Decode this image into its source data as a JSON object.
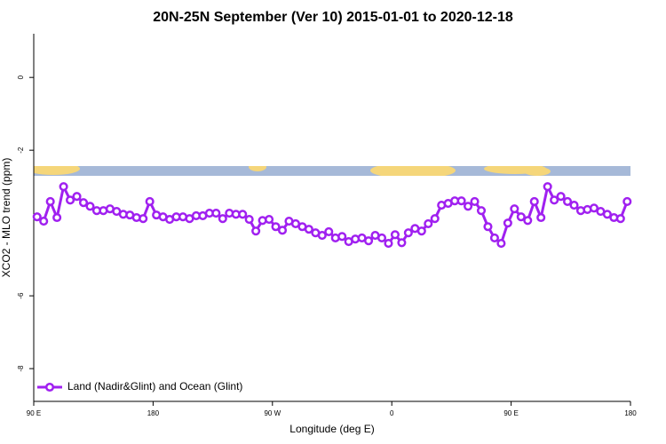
{
  "chart_data": {
    "type": "line",
    "title": "20N-25N September (Ver 10)   2015-01-01 to 2020-12-18",
    "x_label": "Longitude (deg E)",
    "y_label": "XCO2 - MLO trend (ppm)",
    "xlim": [
      90,
      540
    ],
    "ylim": [
      -8.9,
      1.2
    ],
    "xticks": [
      {
        "value": 90,
        "label": "90 E"
      },
      180,
      {
        "value": 270,
        "label": "90 W"
      },
      {
        "value": 360,
        "label": "0"
      },
      {
        "value": 450,
        "label": "90 E"
      },
      {
        "value": 540,
        "label": "180"
      }
    ],
    "yticks": [
      0,
      -2,
      -6,
      -8
    ],
    "legend_position": "bottom-left",
    "x": [
      92.5,
      97.5,
      102.5,
      107.5,
      112.5,
      117.5,
      122.5,
      127.5,
      132.5,
      137.5,
      142.5,
      147.5,
      152.5,
      157.5,
      162.5,
      167.5,
      172.5,
      177.5,
      182.5,
      187.5,
      192.5,
      197.5,
      202.5,
      207.5,
      212.5,
      217.5,
      222.5,
      227.5,
      232.5,
      237.5,
      242.5,
      247.5,
      252.5,
      257.5,
      262.5,
      267.5,
      272.5,
      277.5,
      282.5,
      287.5,
      292.5,
      297.5,
      302.5,
      307.5,
      312.5,
      317.5,
      322.5,
      327.5,
      332.5,
      337.5,
      342.5,
      347.5,
      352.5,
      357.5,
      362.5,
      367.5,
      372.5,
      377.5,
      382.5,
      387.5,
      392.5,
      397.5,
      402.5,
      407.5,
      412.5,
      417.5,
      422.5,
      427.5,
      432.5,
      437.5,
      442.5,
      447.5,
      452.5,
      457.5,
      462.5,
      467.5,
      472.5,
      477.5,
      482.5,
      487.5,
      492.5,
      497.5,
      502.5,
      507.5,
      512.5,
      517.5,
      522.5,
      527.5,
      532.5,
      537.5
    ],
    "series": [
      {
        "name": "Land (Nadir&Glint) and Ocean (Glint)",
        "color": "#a020f0",
        "values": [
          -3.83,
          -3.95,
          -3.41,
          -3.85,
          -3.0,
          -3.37,
          -3.27,
          -3.44,
          -3.54,
          -3.66,
          -3.66,
          -3.61,
          -3.68,
          -3.76,
          -3.78,
          -3.85,
          -3.88,
          -3.41,
          -3.78,
          -3.83,
          -3.9,
          -3.83,
          -3.83,
          -3.88,
          -3.8,
          -3.8,
          -3.73,
          -3.73,
          -3.88,
          -3.73,
          -3.76,
          -3.76,
          -3.9,
          -4.22,
          -3.93,
          -3.9,
          -4.1,
          -4.2,
          -3.95,
          -4.02,
          -4.1,
          -4.17,
          -4.27,
          -4.34,
          -4.24,
          -4.41,
          -4.37,
          -4.51,
          -4.44,
          -4.41,
          -4.49,
          -4.34,
          -4.41,
          -4.56,
          -4.32,
          -4.54,
          -4.27,
          -4.15,
          -4.22,
          -4.02,
          -3.88,
          -3.51,
          -3.46,
          -3.39,
          -3.39,
          -3.54,
          -3.41,
          -3.66,
          -4.1,
          -4.41,
          -4.56,
          -4.0,
          -3.61,
          -3.83,
          -3.93,
          -3.41,
          -3.85,
          -3.0,
          -3.37,
          -3.27,
          -3.41,
          -3.51,
          -3.66,
          -3.63,
          -3.59,
          -3.68,
          -3.76,
          -3.85,
          -3.88,
          -3.41
        ]
      }
    ]
  }
}
